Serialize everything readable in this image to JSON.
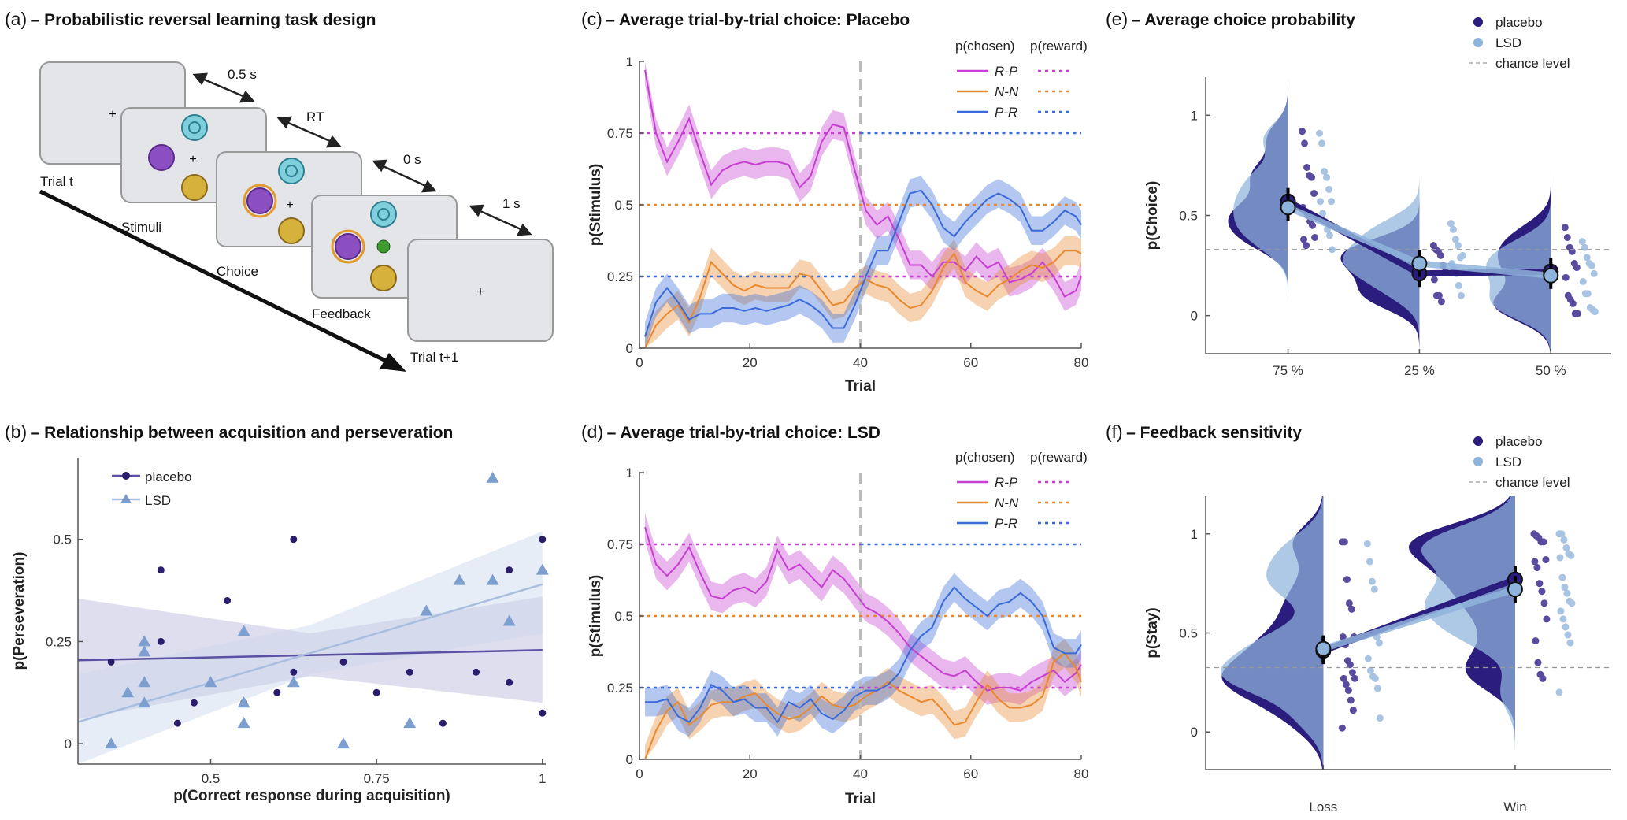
{
  "panel_a": {
    "panel_label": "(a)",
    "title": "– Probabilistic reversal learning task design",
    "screens": [
      "Trial t",
      "Stimuli",
      "Choice",
      "Feedback",
      "Trial t+1"
    ],
    "timings": [
      "0.5 s",
      "RT",
      "0 s",
      "1 s"
    ],
    "fixation": "+",
    "colors": {
      "screen": "#e4e5e8",
      "stim_spiral": "#7fcfdc",
      "stim_purple": "#8b4fc2",
      "stim_gold": "#d6b23c",
      "choice_ring": "#e39a2c",
      "feedback_smiley": "#3d9a2f"
    }
  },
  "chart_data": [
    {
      "type": "scatter",
      "panel_label": "(b)",
      "title": "– Relationship between acquisition and perseveration",
      "xlabel": "p(Correct response during acquisition)",
      "ylabel": "p(Perseveration)",
      "xlim": [
        0.3,
        1.005
      ],
      "ylim": [
        -0.05,
        0.7
      ],
      "xticks": [
        0.5,
        0.75,
        1
      ],
      "xticklabels": [
        "0.5",
        "0.75",
        "1"
      ],
      "yticks": [
        0,
        0.25,
        0.5
      ],
      "yticklabels": [
        "0",
        "0.25",
        "0.5"
      ],
      "legend_position": "top-left",
      "series": [
        {
          "name": "placebo",
          "marker": "circle",
          "color": "#2b1d6e",
          "line_color": "#5b50a5",
          "points": [
            [
              0.35,
              0.2
            ],
            [
              0.425,
              0.425
            ],
            [
              0.425,
              0.25
            ],
            [
              0.45,
              0.05
            ],
            [
              0.475,
              0.1
            ],
            [
              0.525,
              0.35
            ],
            [
              0.55,
              0.1
            ],
            [
              0.6,
              0.125
            ],
            [
              0.625,
              0.5
            ],
            [
              0.625,
              0.175
            ],
            [
              0.7,
              0.2
            ],
            [
              0.75,
              0.125
            ],
            [
              0.8,
              0.175
            ],
            [
              0.85,
              0.05
            ],
            [
              0.9,
              0.175
            ],
            [
              0.95,
              0.425
            ],
            [
              0.95,
              0.15
            ],
            [
              1,
              0.5
            ],
            [
              1,
              0.075
            ]
          ],
          "fit": [
            [
              0.3,
              0.204
            ],
            [
              1,
              0.229
            ]
          ],
          "ci": {
            "x": [
              0.3,
              0.65,
              1
            ],
            "lower": [
              0.06,
              0.165,
              0.1
            ],
            "upper": [
              0.355,
              0.27,
              0.36
            ]
          }
        },
        {
          "name": "LSD",
          "marker": "triangle",
          "color": "#7d9fcf",
          "line_color": "#a9bedf",
          "points": [
            [
              0.35,
              0
            ],
            [
              0.375,
              0.125
            ],
            [
              0.4,
              0.25
            ],
            [
              0.4,
              0.225
            ],
            [
              0.4,
              0.15
            ],
            [
              0.4,
              0.1
            ],
            [
              0.5,
              0.15
            ],
            [
              0.55,
              0.275
            ],
            [
              0.55,
              0.1
            ],
            [
              0.55,
              0.05
            ],
            [
              0.625,
              0.15
            ],
            [
              0.7,
              0
            ],
            [
              0.8,
              0.05
            ],
            [
              0.825,
              0.325
            ],
            [
              0.875,
              0.4
            ],
            [
              0.925,
              0.65
            ],
            [
              0.925,
              0.4
            ],
            [
              0.95,
              0.3
            ],
            [
              1,
              0.425
            ]
          ],
          "fit": [
            [
              0.3,
              0.053
            ],
            [
              1,
              0.39
            ]
          ],
          "ci": {
            "x": [
              0.3,
              0.65,
              1
            ],
            "lower": [
              -0.05,
              0.17,
              0.27
            ],
            "upper": [
              0.17,
              0.29,
              0.52
            ]
          }
        }
      ]
    },
    {
      "type": "line",
      "panel_label": "(c)",
      "title": "– Average trial-by-trial choice: Placebo",
      "xlabel": "Trial",
      "ylabel": "p(Stimulus)",
      "xlim": [
        0,
        80
      ],
      "ylim": [
        0,
        1
      ],
      "xticks": [
        0,
        20,
        40,
        60,
        80
      ],
      "xticklabels": [
        "0",
        "20",
        "40",
        "60",
        "80"
      ],
      "yticks": [
        0,
        0.25,
        0.5,
        0.75,
        1
      ],
      "yticklabels": [
        "0",
        "0.25",
        "0.5",
        "0.75",
        "1"
      ],
      "reversal_trial": 40,
      "legend_headers": [
        "p(chosen)",
        "p(reward)"
      ],
      "legend_position": "top-right",
      "x": [
        1,
        3,
        5,
        7,
        9,
        11,
        13,
        15,
        17,
        19,
        21,
        23,
        25,
        27,
        29,
        31,
        33,
        35,
        37,
        39,
        41,
        43,
        45,
        47,
        49,
        51,
        53,
        55,
        57,
        59,
        61,
        63,
        65,
        67,
        69,
        71,
        73,
        75,
        77,
        79,
        80
      ],
      "series": [
        {
          "name": "R-P",
          "color": "#c53fd0",
          "ci_halfwidth": 0.05,
          "values": [
            0.97,
            0.75,
            0.65,
            0.72,
            0.8,
            0.68,
            0.57,
            0.62,
            0.64,
            0.65,
            0.64,
            0.65,
            0.65,
            0.64,
            0.56,
            0.6,
            0.72,
            0.78,
            0.77,
            0.62,
            0.48,
            0.43,
            0.46,
            0.38,
            0.29,
            0.29,
            0.25,
            0.3,
            0.3,
            0.27,
            0.32,
            0.28,
            0.3,
            0.23,
            0.24,
            0.26,
            0.3,
            0.25,
            0.18,
            0.2,
            0.25
          ],
          "p_reward": [
            {
              "from": 0,
              "to": 40,
              "value": 0.75
            },
            {
              "from": 40,
              "to": 80,
              "value": 0.25
            }
          ]
        },
        {
          "name": "N-N",
          "color": "#e8892f",
          "ci_halfwidth": 0.05,
          "values": [
            0.0,
            0.08,
            0.12,
            0.15,
            0.09,
            0.18,
            0.3,
            0.26,
            0.22,
            0.2,
            0.22,
            0.21,
            0.21,
            0.21,
            0.26,
            0.25,
            0.2,
            0.15,
            0.16,
            0.21,
            0.24,
            0.22,
            0.21,
            0.17,
            0.14,
            0.15,
            0.2,
            0.28,
            0.33,
            0.23,
            0.2,
            0.18,
            0.22,
            0.24,
            0.27,
            0.29,
            0.28,
            0.3,
            0.34,
            0.34,
            0.33
          ],
          "p_reward": [
            {
              "from": 0,
              "to": 80,
              "value": 0.5
            }
          ]
        },
        {
          "name": "P-R",
          "color": "#3a6bd8",
          "ci_halfwidth": 0.05,
          "values": [
            0.04,
            0.16,
            0.21,
            0.16,
            0.1,
            0.12,
            0.12,
            0.14,
            0.14,
            0.13,
            0.14,
            0.13,
            0.14,
            0.15,
            0.17,
            0.15,
            0.12,
            0.07,
            0.07,
            0.15,
            0.25,
            0.34,
            0.34,
            0.44,
            0.54,
            0.55,
            0.5,
            0.42,
            0.39,
            0.44,
            0.48,
            0.52,
            0.54,
            0.52,
            0.49,
            0.41,
            0.41,
            0.44,
            0.48,
            0.46,
            0.43
          ],
          "p_reward": [
            {
              "from": 0,
              "to": 40,
              "value": 0.25
            },
            {
              "from": 40,
              "to": 80,
              "value": 0.75
            }
          ]
        }
      ]
    },
    {
      "type": "line",
      "panel_label": "(d)",
      "title": "– Average trial-by-trial choice: LSD",
      "xlabel": "Trial",
      "ylabel": "p(Stimulus)",
      "xlim": [
        0,
        80
      ],
      "ylim": [
        0,
        1
      ],
      "xticks": [
        0,
        20,
        40,
        60,
        80
      ],
      "xticklabels": [
        "0",
        "20",
        "40",
        "60",
        "80"
      ],
      "yticks": [
        0,
        0.25,
        0.5,
        0.75,
        1
      ],
      "yticklabels": [
        "0",
        "0.25",
        "0.5",
        "0.75",
        "1"
      ],
      "reversal_trial": 40,
      "legend_headers": [
        "p(chosen)",
        "p(reward)"
      ],
      "legend_position": "top-right",
      "x": [
        1,
        3,
        5,
        7,
        9,
        11,
        13,
        15,
        17,
        19,
        21,
        23,
        25,
        27,
        29,
        31,
        33,
        35,
        37,
        39,
        41,
        43,
        45,
        47,
        49,
        51,
        53,
        55,
        57,
        59,
        61,
        63,
        65,
        67,
        69,
        71,
        73,
        75,
        77,
        79,
        80
      ],
      "series": [
        {
          "name": "R-P",
          "color": "#c53fd0",
          "ci_halfwidth": 0.05,
          "values": [
            0.81,
            0.68,
            0.64,
            0.68,
            0.74,
            0.65,
            0.57,
            0.56,
            0.59,
            0.6,
            0.58,
            0.62,
            0.73,
            0.66,
            0.68,
            0.64,
            0.6,
            0.66,
            0.63,
            0.58,
            0.53,
            0.51,
            0.48,
            0.44,
            0.39,
            0.36,
            0.33,
            0.3,
            0.29,
            0.31,
            0.27,
            0.24,
            0.25,
            0.25,
            0.24,
            0.27,
            0.29,
            0.31,
            0.27,
            0.3,
            0.33
          ],
          "p_reward": [
            {
              "from": 0,
              "to": 40,
              "value": 0.75
            },
            {
              "from": 40,
              "to": 80,
              "value": 0.25
            }
          ]
        },
        {
          "name": "N-N",
          "color": "#e8892f",
          "ci_halfwidth": 0.05,
          "values": [
            0.0,
            0.1,
            0.17,
            0.2,
            0.12,
            0.15,
            0.19,
            0.2,
            0.2,
            0.22,
            0.23,
            0.19,
            0.16,
            0.14,
            0.15,
            0.18,
            0.22,
            0.19,
            0.18,
            0.19,
            0.22,
            0.24,
            0.27,
            0.24,
            0.22,
            0.2,
            0.21,
            0.17,
            0.12,
            0.13,
            0.2,
            0.26,
            0.21,
            0.18,
            0.18,
            0.19,
            0.22,
            0.34,
            0.37,
            0.32,
            0.27
          ],
          "p_reward": [
            {
              "from": 0,
              "to": 80,
              "value": 0.5
            }
          ]
        },
        {
          "name": "P-R",
          "color": "#3a6bd8",
          "ci_halfwidth": 0.05,
          "values": [
            0.2,
            0.2,
            0.21,
            0.15,
            0.13,
            0.18,
            0.26,
            0.24,
            0.2,
            0.21,
            0.18,
            0.18,
            0.13,
            0.2,
            0.18,
            0.21,
            0.16,
            0.14,
            0.17,
            0.22,
            0.24,
            0.24,
            0.26,
            0.3,
            0.38,
            0.43,
            0.46,
            0.55,
            0.6,
            0.56,
            0.53,
            0.5,
            0.54,
            0.55,
            0.58,
            0.55,
            0.5,
            0.39,
            0.37,
            0.37,
            0.4
          ],
          "p_reward": [
            {
              "from": 0,
              "to": 40,
              "value": 0.25
            },
            {
              "from": 40,
              "to": 80,
              "value": 0.75
            }
          ]
        }
      ]
    },
    {
      "type": "violin",
      "panel_label": "(e)",
      "title": "– Average choice probability",
      "xlabel": "",
      "ylabel": "p(Choice)",
      "categories": [
        "75 %",
        "25 %",
        "50 %"
      ],
      "ylim": [
        -0.19,
        1.19
      ],
      "yticks": [
        0,
        0.5,
        1
      ],
      "yticklabels": [
        "0",
        "0.5",
        "1"
      ],
      "chance_level": 0.33,
      "legend": [
        "placebo",
        "LSD",
        "chance level"
      ],
      "legend_position": "top-right",
      "series": [
        {
          "name": "placebo",
          "color": "#2b1d7e",
          "dot_color": "#5b4b9f",
          "means": [
            0.57,
            0.21,
            0.22
          ],
          "points": [
            [
              0.92,
              0.86,
              0.74,
              0.7,
              0.69,
              0.61,
              0.54,
              0.52,
              0.5,
              0.47,
              0.45,
              0.39,
              0.38,
              0.35
            ],
            [
              0.35,
              0.33,
              0.32,
              0.3,
              0.25,
              0.22,
              0.18,
              0.1,
              0.1,
              0.07
            ],
            [
              0.44,
              0.39,
              0.34,
              0.32,
              0.26,
              0.24,
              0.19,
              0.1,
              0.08,
              0.06,
              0.01,
              0.01
            ]
          ]
        },
        {
          "name": "LSD",
          "color": "#8fb4dc",
          "dot_color": "#a9c3e3",
          "means": [
            0.54,
            0.26,
            0.2
          ],
          "points": [
            [
              0.91,
              0.86,
              0.72,
              0.69,
              0.63,
              0.57,
              0.57,
              0.51,
              0.47,
              0.43,
              0.4,
              0.33
            ],
            [
              0.46,
              0.43,
              0.38,
              0.35,
              0.29,
              0.3,
              0.26,
              0.23,
              0.21,
              0.15,
              0.1
            ],
            [
              0.37,
              0.34,
              0.29,
              0.26,
              0.25,
              0.21,
              0.17,
              0.11,
              0.11,
              0.04,
              0.03,
              0.02
            ]
          ]
        }
      ]
    },
    {
      "type": "violin",
      "panel_label": "(f)",
      "title": "– Feedback sensitivity",
      "xlabel": "",
      "ylabel": "p(Stay)",
      "categories": [
        "Loss",
        "Win"
      ],
      "ylim": [
        -0.19,
        1.19
      ],
      "yticks": [
        0,
        0.5,
        1
      ],
      "yticklabels": [
        "0",
        "0.5",
        "1"
      ],
      "chance_level": 0.325,
      "legend": [
        "placebo",
        "LSD",
        "chance level"
      ],
      "legend_position": "top-right",
      "series": [
        {
          "name": "placebo",
          "color": "#2b1d7e",
          "dot_color": "#5b4b9f",
          "means": [
            0.41,
            0.77
          ],
          "points": [
            [
              0.96,
              0.96,
              0.77,
              0.65,
              0.62,
              0.48,
              0.48,
              0.44,
              0.36,
              0.34,
              0.3,
              0.27,
              0.27,
              0.24,
              0.21,
              0.16,
              0.11,
              0.02
            ],
            [
              1.0,
              0.99,
              0.98,
              0.96,
              0.96,
              0.87,
              0.86,
              0.83,
              0.75,
              0.71,
              0.65,
              0.57,
              0.46,
              0.35,
              0.29,
              0.27
            ]
          ]
        },
        {
          "name": "LSD",
          "color": "#8fb4dc",
          "dot_color": "#a9c3e3",
          "means": [
            0.42,
            0.72
          ],
          "points": [
            [
              0.95,
              0.86,
              0.76,
              0.72,
              0.48,
              0.45,
              0.37,
              0.31,
              0.28,
              0.27,
              0.22,
              0.07
            ],
            [
              1.0,
              1.0,
              0.97,
              0.93,
              0.9,
              0.89,
              0.88,
              0.78,
              0.73,
              0.7,
              0.66,
              0.65,
              0.61,
              0.57,
              0.53,
              0.49,
              0.45,
              0.2
            ]
          ]
        }
      ]
    }
  ]
}
